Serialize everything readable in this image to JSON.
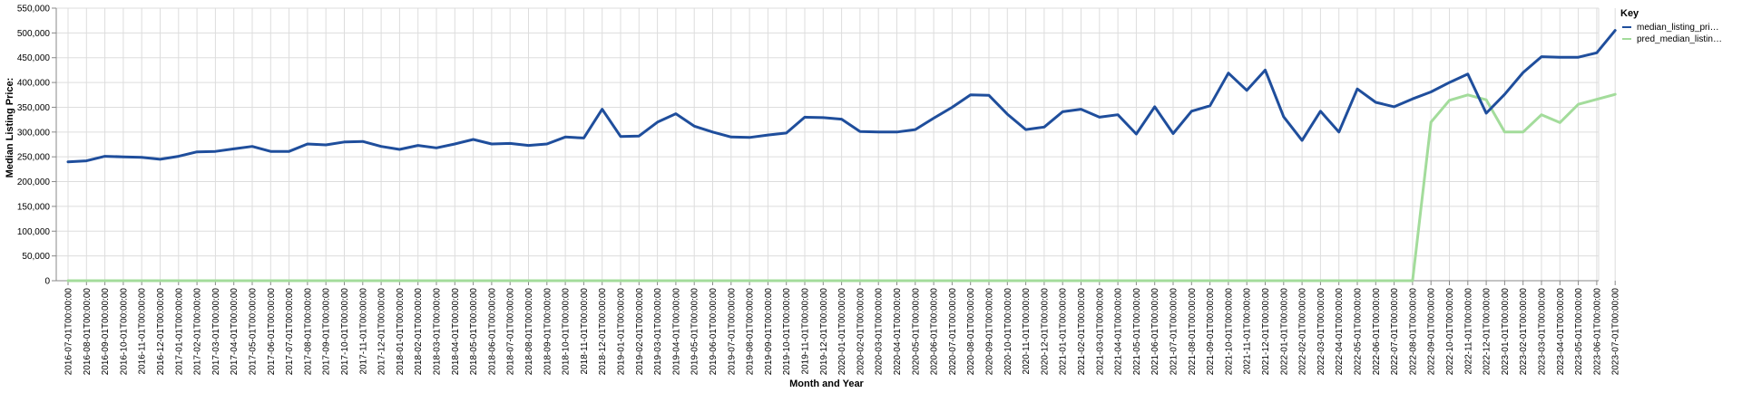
{
  "chart_data": {
    "type": "line",
    "xlabel": "Month and Year",
    "ylabel": "Median Listing Price:",
    "ylim": [
      0,
      550000
    ],
    "yticks": [
      "0",
      "50,000",
      "100,000",
      "150,000",
      "200,000",
      "250,000",
      "300,000",
      "350,000",
      "400,000",
      "450,000",
      "500,000",
      "550,000"
    ],
    "grid": true,
    "legend": {
      "title": "Key",
      "placement": "top-right"
    },
    "x": [
      "2016-07-01T00:00:00",
      "2016-08-01T00:00:00",
      "2016-09-01T00:00:00",
      "2016-10-01T00:00:00",
      "2016-11-01T00:00:00",
      "2016-12-01T00:00:00",
      "2017-01-01T00:00:00",
      "2017-02-01T00:00:00",
      "2017-03-01T00:00:00",
      "2017-04-01T00:00:00",
      "2017-05-01T00:00:00",
      "2017-06-01T00:00:00",
      "2017-07-01T00:00:00",
      "2017-08-01T00:00:00",
      "2017-09-01T00:00:00",
      "2017-10-01T00:00:00",
      "2017-11-01T00:00:00",
      "2017-12-01T00:00:00",
      "2018-01-01T00:00:00",
      "2018-02-01T00:00:00",
      "2018-03-01T00:00:00",
      "2018-04-01T00:00:00",
      "2018-05-01T00:00:00",
      "2018-06-01T00:00:00",
      "2018-07-01T00:00:00",
      "2018-08-01T00:00:00",
      "2018-09-01T00:00:00",
      "2018-10-01T00:00:00",
      "2018-11-01T00:00:00",
      "2018-12-01T00:00:00",
      "2019-01-01T00:00:00",
      "2019-02-01T00:00:00",
      "2019-03-01T00:00:00",
      "2019-04-01T00:00:00",
      "2019-05-01T00:00:00",
      "2019-06-01T00:00:00",
      "2019-07-01T00:00:00",
      "2019-08-01T00:00:00",
      "2019-09-01T00:00:00",
      "2019-10-01T00:00:00",
      "2019-11-01T00:00:00",
      "2019-12-01T00:00:00",
      "2020-01-01T00:00:00",
      "2020-02-01T00:00:00",
      "2020-03-01T00:00:00",
      "2020-04-01T00:00:00",
      "2020-05-01T00:00:00",
      "2020-06-01T00:00:00",
      "2020-07-01T00:00:00",
      "2020-08-01T00:00:00",
      "2020-09-01T00:00:00",
      "2020-10-01T00:00:00",
      "2020-11-01T00:00:00",
      "2020-12-01T00:00:00",
      "2021-01-01T00:00:00",
      "2021-02-01T00:00:00",
      "2021-03-01T00:00:00",
      "2021-04-01T00:00:00",
      "2021-05-01T00:00:00",
      "2021-06-01T00:00:00",
      "2021-07-01T00:00:00",
      "2021-08-01T00:00:00",
      "2021-09-01T00:00:00",
      "2021-10-01T00:00:00",
      "2021-11-01T00:00:00",
      "2021-12-01T00:00:00",
      "2022-01-01T00:00:00",
      "2022-02-01T00:00:00",
      "2022-03-01T00:00:00",
      "2022-04-01T00:00:00",
      "2022-05-01T00:00:00",
      "2022-06-01T00:00:00",
      "2022-07-01T00:00:00",
      "2022-08-01T00:00:00",
      "2022-09-01T00:00:00",
      "2022-10-01T00:00:00",
      "2022-11-01T00:00:00",
      "2022-12-01T00:00:00",
      "2023-01-01T00:00:00",
      "2023-02-01T00:00:00",
      "2023-03-01T00:00:00",
      "2023-04-01T00:00:00",
      "2023-05-01T00:00:00",
      "2023-06-01T00:00:00",
      "2023-07-01T00:00:00"
    ],
    "series": [
      {
        "name": "median_listing_pri…",
        "color": "#1f4e9c",
        "values": [
          240000,
          242000,
          251000,
          250000,
          249000,
          245000,
          251000,
          260000,
          261000,
          266000,
          271000,
          261000,
          261000,
          276000,
          274000,
          280000,
          281000,
          271000,
          265000,
          273000,
          268000,
          276000,
          285000,
          276000,
          277000,
          273000,
          276000,
          290000,
          288000,
          346000,
          291000,
          292000,
          320000,
          337000,
          312000,
          300000,
          290000,
          289000,
          294000,
          298000,
          330000,
          329000,
          326000,
          301000,
          300000,
          300000,
          305000,
          328000,
          350000,
          375000,
          374000,
          336000,
          305000,
          310000,
          341000,
          346000,
          330000,
          335000,
          296000,
          351000,
          297000,
          342000,
          353000,
          419000,
          384000,
          425000,
          331000,
          283000,
          342000,
          300000,
          387000,
          360000,
          351000,
          367000,
          381000,
          400000,
          417000,
          338000,
          376000,
          420000,
          452000,
          451000,
          451000,
          460000,
          505000
        ]
      },
      {
        "name": "pred_median_listin…",
        "color": "#a3dc9b",
        "values": [
          0,
          0,
          0,
          0,
          0,
          0,
          0,
          0,
          0,
          0,
          0,
          0,
          0,
          0,
          0,
          0,
          0,
          0,
          0,
          0,
          0,
          0,
          0,
          0,
          0,
          0,
          0,
          0,
          0,
          0,
          0,
          0,
          0,
          0,
          0,
          0,
          0,
          0,
          0,
          0,
          0,
          0,
          0,
          0,
          0,
          0,
          0,
          0,
          0,
          0,
          0,
          0,
          0,
          0,
          0,
          0,
          0,
          0,
          0,
          0,
          0,
          0,
          0,
          0,
          0,
          0,
          0,
          0,
          0,
          0,
          0,
          0,
          0,
          0,
          320000,
          364000,
          375000,
          365000,
          300000,
          300000,
          335000,
          319000,
          356000,
          366000,
          376000
        ]
      }
    ]
  }
}
